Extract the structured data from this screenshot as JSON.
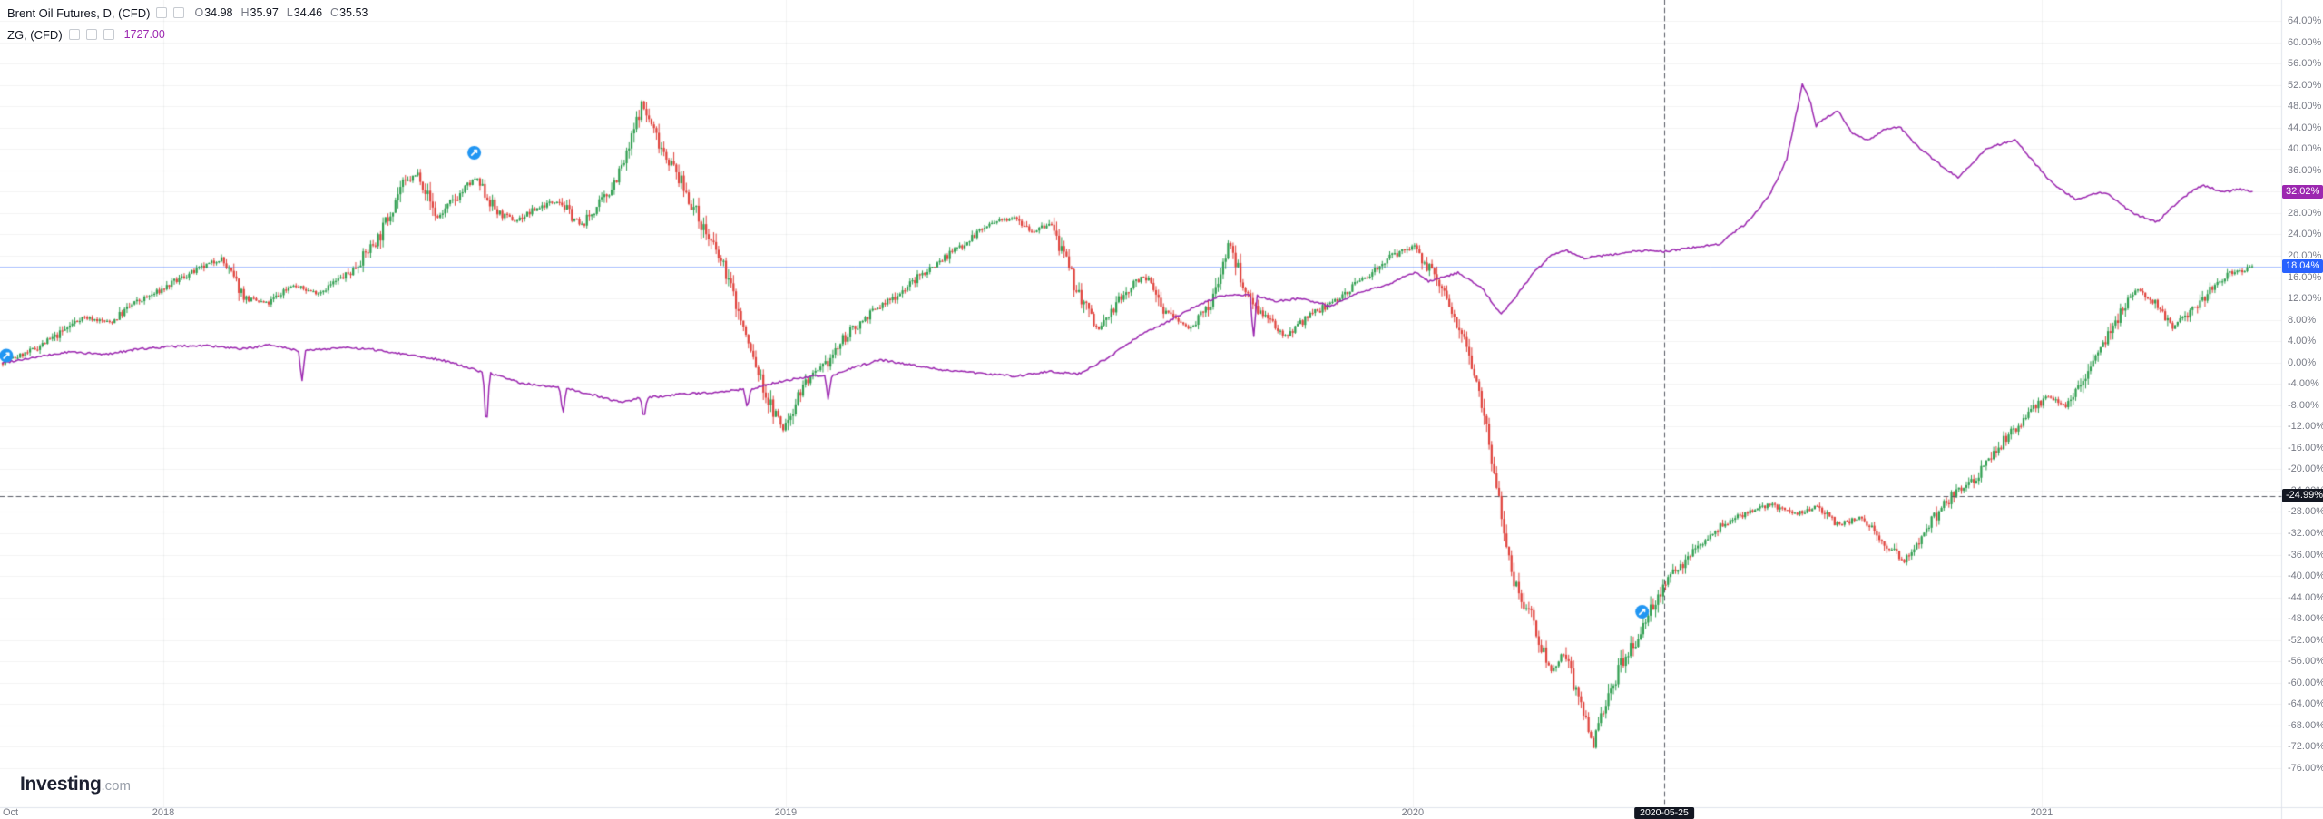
{
  "header": {
    "row1": {
      "title": "Brent Oil Futures, D, (CFD)",
      "ohlc": [
        {
          "k": "O",
          "v": "34.98"
        },
        {
          "k": "H",
          "v": "35.97"
        },
        {
          "k": "L",
          "v": "34.46"
        },
        {
          "k": "C",
          "v": "35.53"
        }
      ]
    },
    "row2": {
      "title": "ZG, (CFD)",
      "value": "1727.00",
      "value_color": "#9c27b0"
    }
  },
  "axis_y": {
    "tick_labels": [
      "64.00%",
      "60.00%",
      "56.00%",
      "52.00%",
      "48.00%",
      "44.00%",
      "40.00%",
      "36.00%",
      "32.00%",
      "28.00%",
      "24.00%",
      "20.00%",
      "16.00%",
      "12.00%",
      "8.00%",
      "4.00%",
      "0.00%",
      "-4.00%",
      "-8.00%",
      "-12.00%",
      "-16.00%",
      "-20.00%",
      "-24.00%",
      "-28.00%",
      "-32.00%",
      "-36.00%",
      "-40.00%",
      "-44.00%",
      "-48.00%",
      "-52.00%",
      "-56.00%",
      "-60.00%",
      "-64.00%",
      "-68.00%",
      "-72.00%",
      "-76.00%"
    ]
  },
  "axis_x": {
    "ticks": [
      {
        "label": "Oct",
        "t": 0.0
      },
      {
        "label": "2018",
        "t": 0.0714
      },
      {
        "label": "2019",
        "t": 0.3481
      },
      {
        "label": "2020",
        "t": 0.6268
      },
      {
        "label": "2021",
        "t": 0.9064
      }
    ]
  },
  "badges": {
    "gold_last": {
      "label": "32.02%",
      "value": 32.02,
      "bg": "#9c27b0"
    },
    "brent_last": {
      "label": "18.04%",
      "value": 18.04,
      "bg": "#2962ff"
    },
    "crosshair_price": {
      "label": "-24.99%",
      "value": -24.99,
      "bg": "#131722"
    }
  },
  "logo": {
    "bold": "Investing",
    "suffix": ".com"
  },
  "chart_data": {
    "type": "mixed",
    "mode": "percent-change-scale",
    "x_range": [
      "Oct 2017",
      "May 2021"
    ],
    "y_axis": {
      "min": -76,
      "max": 64,
      "step": 4,
      "unit": "%",
      "grid": "faint"
    },
    "legend_position": "top-left",
    "series": [
      {
        "name": "Brent Oil Futures (CFD)",
        "type": "candlestick",
        "up_color": "#2f9e4f",
        "down_color": "#e0423c",
        "last_value": 18.04,
        "points": [
          [
            0.0,
            0
          ],
          [
            0.012,
            2
          ],
          [
            0.024,
            5
          ],
          [
            0.035,
            8.5
          ],
          [
            0.048,
            7.5
          ],
          [
            0.058,
            11
          ],
          [
            0.068,
            13
          ],
          [
            0.08,
            16
          ],
          [
            0.09,
            18
          ],
          [
            0.097,
            19.5
          ],
          [
            0.108,
            12
          ],
          [
            0.118,
            11
          ],
          [
            0.128,
            14.5
          ],
          [
            0.14,
            13
          ],
          [
            0.155,
            17
          ],
          [
            0.168,
            24
          ],
          [
            0.177,
            33
          ],
          [
            0.185,
            35.5
          ],
          [
            0.193,
            27
          ],
          [
            0.202,
            31
          ],
          [
            0.21,
            34.5
          ],
          [
            0.22,
            28
          ],
          [
            0.228,
            26.5
          ],
          [
            0.238,
            29
          ],
          [
            0.247,
            30.5
          ],
          [
            0.257,
            25.5
          ],
          [
            0.268,
            31
          ],
          [
            0.277,
            38
          ],
          [
            0.284,
            48.5
          ],
          [
            0.291,
            42
          ],
          [
            0.3,
            35
          ],
          [
            0.31,
            26.5
          ],
          [
            0.322,
            16.5
          ],
          [
            0.331,
            4
          ],
          [
            0.34,
            -7
          ],
          [
            0.347,
            -12.6
          ],
          [
            0.356,
            -4
          ],
          [
            0.365,
            -1
          ],
          [
            0.375,
            5
          ],
          [
            0.385,
            9
          ],
          [
            0.397,
            12.5
          ],
          [
            0.41,
            17
          ],
          [
            0.423,
            21
          ],
          [
            0.437,
            25.5
          ],
          [
            0.45,
            27.5
          ],
          [
            0.458,
            24.5
          ],
          [
            0.466,
            26
          ],
          [
            0.477,
            14
          ],
          [
            0.487,
            6
          ],
          [
            0.497,
            12
          ],
          [
            0.507,
            16.5
          ],
          [
            0.517,
            9.5
          ],
          [
            0.527,
            6.5
          ],
          [
            0.537,
            10.5
          ],
          [
            0.545,
            22.5
          ],
          [
            0.553,
            13
          ],
          [
            0.562,
            8
          ],
          [
            0.57,
            5
          ],
          [
            0.58,
            8.5
          ],
          [
            0.592,
            11.5
          ],
          [
            0.604,
            15.5
          ],
          [
            0.616,
            19.5
          ],
          [
            0.628,
            22
          ],
          [
            0.64,
            13
          ],
          [
            0.65,
            5
          ],
          [
            0.658,
            -8
          ],
          [
            0.666,
            -28
          ],
          [
            0.672,
            -41
          ],
          [
            0.68,
            -48
          ],
          [
            0.688,
            -58
          ],
          [
            0.694,
            -54
          ],
          [
            0.701,
            -64
          ],
          [
            0.707,
            -72
          ],
          [
            0.713,
            -63
          ],
          [
            0.719,
            -57
          ],
          [
            0.726,
            -52
          ],
          [
            0.733,
            -46
          ],
          [
            0.739,
            -41.5
          ],
          [
            0.748,
            -37
          ],
          [
            0.757,
            -33
          ],
          [
            0.766,
            -30
          ],
          [
            0.776,
            -28
          ],
          [
            0.786,
            -26.5
          ],
          [
            0.796,
            -28.5
          ],
          [
            0.806,
            -27
          ],
          [
            0.816,
            -30.5
          ],
          [
            0.826,
            -29
          ],
          [
            0.836,
            -33.5
          ],
          [
            0.845,
            -37.5
          ],
          [
            0.853,
            -33
          ],
          [
            0.861,
            -27.5
          ],
          [
            0.869,
            -24
          ],
          [
            0.877,
            -21.5
          ],
          [
            0.885,
            -17
          ],
          [
            0.893,
            -13
          ],
          [
            0.901,
            -9.5
          ],
          [
            0.909,
            -6
          ],
          [
            0.917,
            -8
          ],
          [
            0.925,
            -3
          ],
          [
            0.933,
            3.5
          ],
          [
            0.941,
            9
          ],
          [
            0.949,
            13.5
          ],
          [
            0.957,
            11
          ],
          [
            0.965,
            6.5
          ],
          [
            0.973,
            9.5
          ],
          [
            0.981,
            13.5
          ],
          [
            0.99,
            16.5
          ],
          [
            1.0,
            18.04
          ]
        ]
      },
      {
        "name": "ZG (CFD)",
        "type": "line",
        "color": "#9c27b0",
        "last_value": 32.02,
        "points": [
          [
            0.0,
            0
          ],
          [
            0.015,
            1
          ],
          [
            0.03,
            2
          ],
          [
            0.045,
            1.5
          ],
          [
            0.06,
            2.5
          ],
          [
            0.075,
            3
          ],
          [
            0.09,
            3.2
          ],
          [
            0.105,
            2.5
          ],
          [
            0.12,
            3.3
          ],
          [
            0.1315,
            2.2
          ],
          [
            0.133,
            -3.5
          ],
          [
            0.1345,
            2.2
          ],
          [
            0.15,
            2.8
          ],
          [
            0.165,
            2.4
          ],
          [
            0.18,
            1.5
          ],
          [
            0.195,
            0.5
          ],
          [
            0.2135,
            -1.8
          ],
          [
            0.215,
            -13
          ],
          [
            0.2165,
            -2
          ],
          [
            0.23,
            -3.8
          ],
          [
            0.2475,
            -4.8
          ],
          [
            0.249,
            -10
          ],
          [
            0.2505,
            -4.9
          ],
          [
            0.262,
            -6
          ],
          [
            0.275,
            -7.5
          ],
          [
            0.2835,
            -6.6
          ],
          [
            0.285,
            -11
          ],
          [
            0.2865,
            -6.6
          ],
          [
            0.3,
            -6
          ],
          [
            0.315,
            -5.6
          ],
          [
            0.3295,
            -5
          ],
          [
            0.331,
            -8.8
          ],
          [
            0.3325,
            -5
          ],
          [
            0.345,
            -3.6
          ],
          [
            0.36,
            -2.5
          ],
          [
            0.3655,
            -2.6
          ],
          [
            0.367,
            -7
          ],
          [
            0.3685,
            -2.6
          ],
          [
            0.378,
            -1
          ],
          [
            0.39,
            0.5
          ],
          [
            0.405,
            -0.5
          ],
          [
            0.42,
            -1.5
          ],
          [
            0.435,
            -2
          ],
          [
            0.45,
            -2.6
          ],
          [
            0.465,
            -1.6
          ],
          [
            0.478,
            -2.2
          ],
          [
            0.492,
            1
          ],
          [
            0.505,
            5
          ],
          [
            0.515,
            7
          ],
          [
            0.528,
            10
          ],
          [
            0.54,
            12.3
          ],
          [
            0.5545,
            12.8
          ],
          [
            0.556,
            4
          ],
          [
            0.5575,
            12.5
          ],
          [
            0.565,
            11.5
          ],
          [
            0.578,
            12
          ],
          [
            0.59,
            10.5
          ],
          [
            0.602,
            13
          ],
          [
            0.615,
            14.5
          ],
          [
            0.628,
            17
          ],
          [
            0.634,
            15.2
          ],
          [
            0.647,
            16.8
          ],
          [
            0.6575,
            14
          ],
          [
            0.666,
            9
          ],
          [
            0.672,
            12
          ],
          [
            0.68,
            16.5
          ],
          [
            0.688,
            20
          ],
          [
            0.695,
            21
          ],
          [
            0.703,
            19.5
          ],
          [
            0.711,
            20
          ],
          [
            0.72,
            20.5
          ],
          [
            0.73,
            21
          ],
          [
            0.739,
            20.8
          ],
          [
            0.75,
            21.5
          ],
          [
            0.763,
            22.2
          ],
          [
            0.775,
            26
          ],
          [
            0.785,
            31
          ],
          [
            0.793,
            38
          ],
          [
            0.8,
            52.1
          ],
          [
            0.8035,
            49
          ],
          [
            0.806,
            44.3
          ],
          [
            0.811,
            46
          ],
          [
            0.816,
            47.2
          ],
          [
            0.822,
            43
          ],
          [
            0.829,
            41.6
          ],
          [
            0.836,
            43.5
          ],
          [
            0.843,
            44.3
          ],
          [
            0.85,
            41
          ],
          [
            0.856,
            38.8
          ],
          [
            0.863,
            36.5
          ],
          [
            0.869,
            34.6
          ],
          [
            0.876,
            37.5
          ],
          [
            0.882,
            40.2
          ],
          [
            0.889,
            41
          ],
          [
            0.895,
            41.6
          ],
          [
            0.902,
            38
          ],
          [
            0.909,
            34.6
          ],
          [
            0.916,
            32
          ],
          [
            0.922,
            30.5
          ],
          [
            0.929,
            31.5
          ],
          [
            0.935,
            31.9
          ],
          [
            0.942,
            29.5
          ],
          [
            0.948,
            27.7
          ],
          [
            0.953,
            27
          ],
          [
            0.958,
            26.3
          ],
          [
            0.963,
            28.5
          ],
          [
            0.968,
            30.5
          ],
          [
            0.973,
            32
          ],
          [
            0.978,
            33.2
          ],
          [
            0.983,
            32.5
          ],
          [
            0.988,
            31.9
          ],
          [
            0.994,
            32.5
          ],
          [
            1.0,
            32.02
          ]
        ]
      }
    ],
    "price_line": {
      "value": 18.04,
      "color": "#2962ff"
    },
    "crosshair": {
      "t": 0.7386,
      "value": -24.99,
      "date": "2020-05-25"
    },
    "markers": [
      {
        "t": 0.0016,
        "value": 1.3
      },
      {
        "t": 0.2096,
        "value": 39.3
      },
      {
        "t": 0.7288,
        "value": -46.7
      }
    ],
    "marker_color": "#2196f3"
  }
}
